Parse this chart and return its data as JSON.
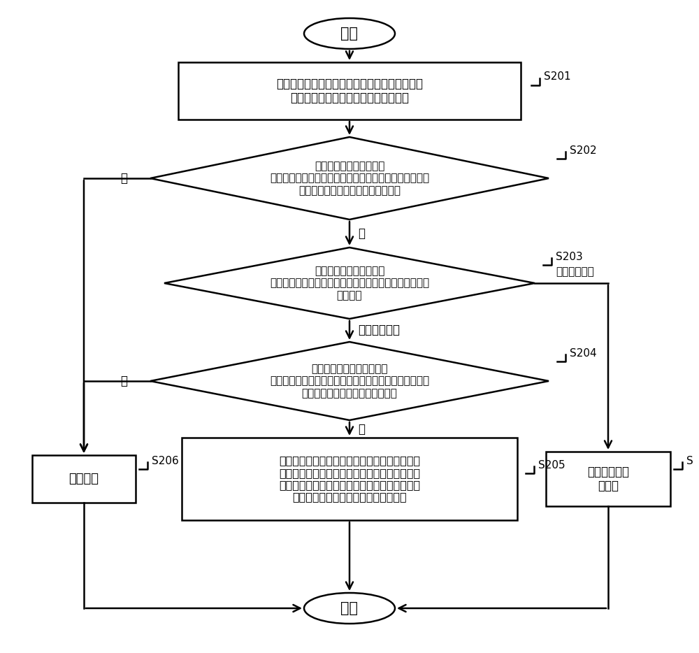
{
  "bg_color": "#ffffff",
  "line_color": "#000000",
  "box_fill": "#ffffff",
  "text_color": "#000000",
  "start_text": "开始",
  "end_text": "结束",
  "s201_text": "若检测到用户进行呼叫，显示输入生物特征信息\n的提示信息以供呼出用户进行身份认证",
  "s201_label": "S201",
  "s202_text": "若检测到呼出用户输入的\n生物特性信息，判断呼出用户输入的生物特征信息与呼出\n用户的预存生物特征信息是否相匹配",
  "s202_label": "S202",
  "s202_yes": "是",
  "s202_no": "否",
  "s203_text": "呼出用户身份认证通过，\n判断用户是选择的加密通信方式呼叫或者选择的普通通信\n方式呼叫",
  "s203_label": "S203",
  "s203_right_label": "普通通信方式",
  "s203_down_label": "加密通信方式",
  "s204_text": "判断在预设第一时间内是否\n接收到接听端发送的第二解密密钥，接听端若身份认证通\n过将发送第二解密密钥给呼出用户",
  "s204_label": "S204",
  "s204_yes": "是",
  "s204_no": "否",
  "s205_text": "将预设的第一解密以及被预设的第一加密密钥加\n密的第一通信数据发送给接听端，以使接听端根\n据第一解密密钥解密第一通信数据，第一解密密\n钥是与第一加密密钥相对应的解密密钥",
  "s205_label": "S205",
  "s205r_text": "以普通通信方\n式呼叫",
  "s205r_label": "S",
  "s206_text": "中断呼叫",
  "s206_label": "S206"
}
